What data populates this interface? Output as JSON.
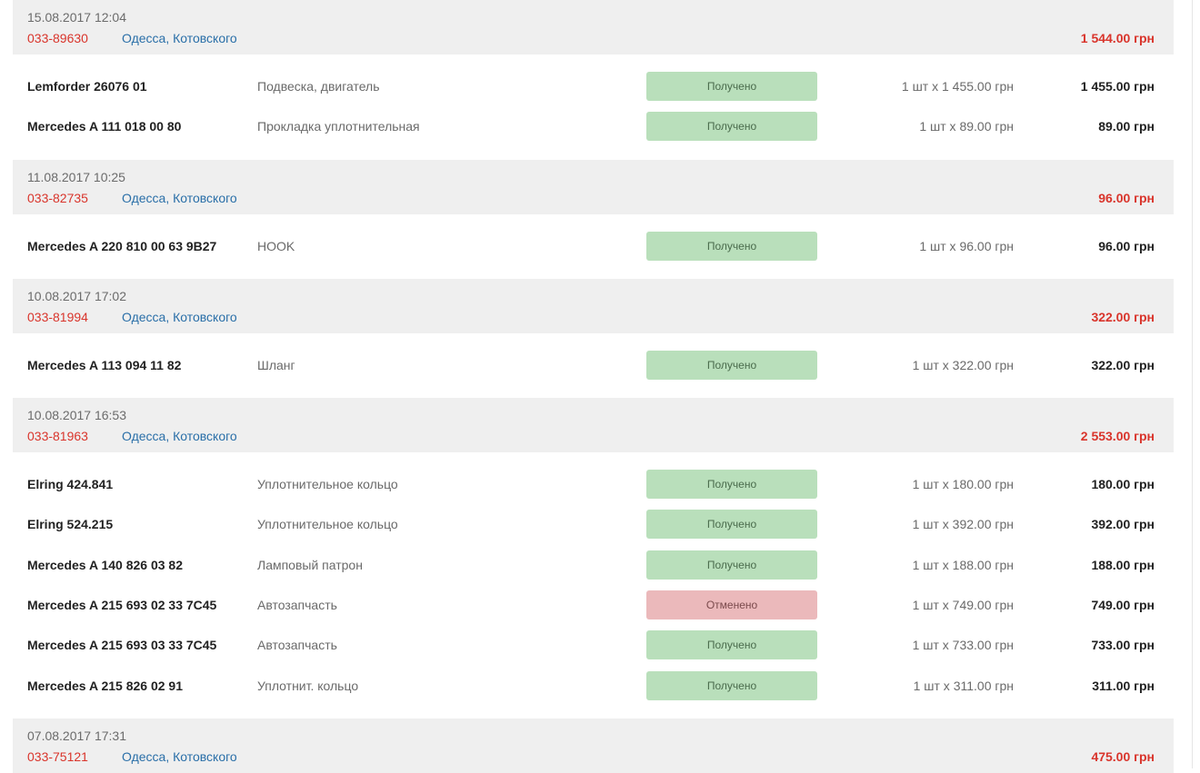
{
  "orders": [
    {
      "date": "15.08.2017 12:04",
      "number": "033-89630",
      "location": "Одесса, Котовского",
      "total": "1 544.00 грн",
      "items": [
        {
          "part": "Lemforder 26076 01",
          "desc": "Подвеска, двигатель",
          "status": "Получено",
          "status_type": "ok",
          "qty": "1 шт x 1 455.00 грн",
          "sum": "1 455.00 грн"
        },
        {
          "part": "Mercedes A 111 018 00 80",
          "desc": "Прокладка уплотнительная",
          "status": "Получено",
          "status_type": "ok",
          "qty": "1 шт x 89.00 грн",
          "sum": "89.00 грн"
        }
      ]
    },
    {
      "date": "11.08.2017 10:25",
      "number": "033-82735",
      "location": "Одесса, Котовского",
      "total": "96.00 грн",
      "items": [
        {
          "part": "Mercedes A 220 810 00 63 9B27",
          "desc": "HOOK",
          "status": "Получено",
          "status_type": "ok",
          "qty": "1 шт x 96.00 грн",
          "sum": "96.00 грн"
        }
      ]
    },
    {
      "date": "10.08.2017 17:02",
      "number": "033-81994",
      "location": "Одесса, Котовского",
      "total": "322.00 грн",
      "items": [
        {
          "part": "Mercedes A 113 094 11 82",
          "desc": "Шланг",
          "status": "Получено",
          "status_type": "ok",
          "qty": "1 шт x 322.00 грн",
          "sum": "322.00 грн"
        }
      ]
    },
    {
      "date": "10.08.2017 16:53",
      "number": "033-81963",
      "location": "Одесса, Котовского",
      "total": "2 553.00 грн",
      "items": [
        {
          "part": "Elring 424.841",
          "desc": "Уплотнительное кольцо",
          "status": "Получено",
          "status_type": "ok",
          "qty": "1 шт x 180.00 грн",
          "sum": "180.00 грн"
        },
        {
          "part": "Elring 524.215",
          "desc": "Уплотнительное кольцо",
          "status": "Получено",
          "status_type": "ok",
          "qty": "1 шт x 392.00 грн",
          "sum": "392.00 грн"
        },
        {
          "part": "Mercedes A 140 826 03 82",
          "desc": "Ламповый патрон",
          "status": "Получено",
          "status_type": "ok",
          "qty": "1 шт x 188.00 грн",
          "sum": "188.00 грн"
        },
        {
          "part": "Mercedes A 215 693 02 33 7C45",
          "desc": "Автозапчасть",
          "status": "Отменено",
          "status_type": "cancel",
          "qty": "1 шт x 749.00 грн",
          "sum": "749.00 грн"
        },
        {
          "part": "Mercedes A 215 693 03 33 7C45",
          "desc": "Автозапчасть",
          "status": "Получено",
          "status_type": "ok",
          "qty": "1 шт x 733.00 грн",
          "sum": "733.00 грн"
        },
        {
          "part": "Mercedes A 215 826 02 91",
          "desc": "Уплотнит. кольцо",
          "status": "Получено",
          "status_type": "ok",
          "qty": "1 шт x 311.00 грн",
          "sum": "311.00 грн"
        }
      ]
    },
    {
      "date": "07.08.2017 17:31",
      "number": "033-75121",
      "location": "Одесса, Котовского",
      "total": "475.00 грн",
      "items": []
    }
  ]
}
